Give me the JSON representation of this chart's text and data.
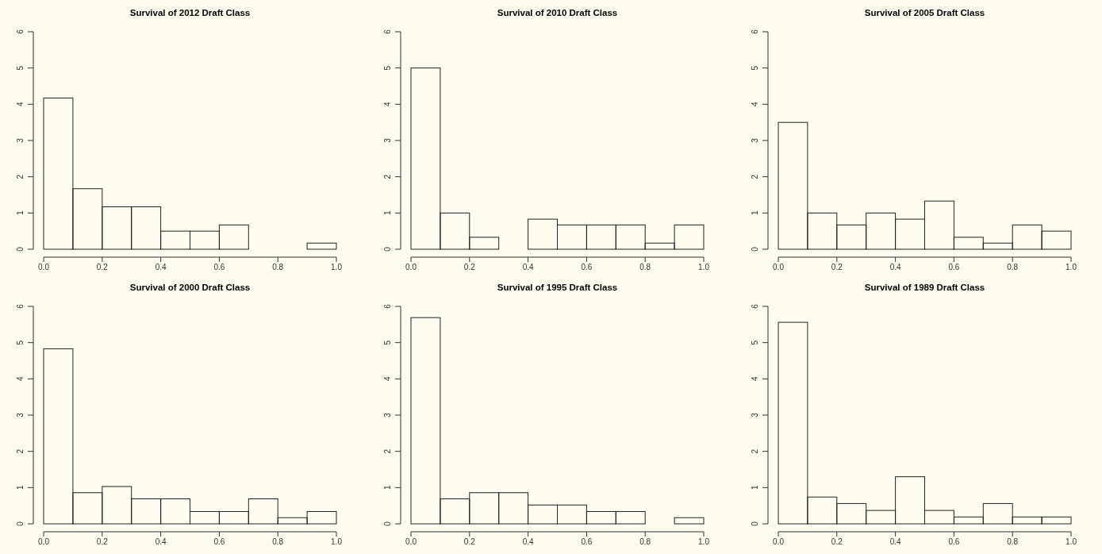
{
  "chart_data": [
    {
      "type": "histogram",
      "title": "Survival of 2012 Draft Class",
      "bins": [
        0,
        0.1,
        0.2,
        0.3,
        0.4,
        0.5,
        0.6,
        0.7,
        0.8,
        0.9,
        1.0
      ],
      "values": [
        4.17,
        1.67,
        1.17,
        1.17,
        0.5,
        0.5,
        0.67,
        0,
        0,
        0.17
      ],
      "xlim": [
        0,
        1
      ],
      "xticks": [
        {
          "value": 0,
          "label": "0.0"
        },
        {
          "value": 0.2,
          "label": "0.2"
        },
        {
          "value": 0.4,
          "label": "0.4"
        },
        {
          "value": 0.6,
          "label": "0.6"
        },
        {
          "value": 0.8,
          "label": "0.8"
        },
        {
          "value": 1,
          "label": "1.0"
        }
      ],
      "ylim": [
        0,
        6
      ],
      "yticks": [
        0,
        1,
        2,
        3,
        4,
        5,
        6
      ]
    },
    {
      "type": "histogram",
      "title": "Survival of 2010 Draft Class",
      "bins": [
        0,
        0.1,
        0.2,
        0.3,
        0.4,
        0.5,
        0.6,
        0.7,
        0.8,
        0.9,
        1.0
      ],
      "values": [
        5,
        1,
        0.33,
        0,
        0.83,
        0.67,
        0.67,
        0.67,
        0.17,
        0.67
      ],
      "xlim": [
        0,
        1
      ],
      "xticks": [
        {
          "value": 0,
          "label": "0.0"
        },
        {
          "value": 0.2,
          "label": "0.2"
        },
        {
          "value": 0.4,
          "label": "0.4"
        },
        {
          "value": 0.6,
          "label": "0.6"
        },
        {
          "value": 0.8,
          "label": "0.8"
        },
        {
          "value": 1,
          "label": "1.0"
        }
      ],
      "ylim": [
        0,
        6
      ],
      "yticks": [
        0,
        1,
        2,
        3,
        4,
        5,
        6
      ]
    },
    {
      "type": "histogram",
      "title": "Survival of 2005 Draft Class",
      "bins": [
        0,
        0.1,
        0.2,
        0.3,
        0.4,
        0.5,
        0.6,
        0.7,
        0.8,
        0.9,
        1.0
      ],
      "values": [
        3.5,
        1,
        0.67,
        1,
        0.83,
        1.33,
        0.33,
        0.17,
        0.67,
        0.5
      ],
      "xlim": [
        0,
        1
      ],
      "xticks": [
        {
          "value": 0,
          "label": "0.0"
        },
        {
          "value": 0.2,
          "label": "0.2"
        },
        {
          "value": 0.4,
          "label": "0.4"
        },
        {
          "value": 0.6,
          "label": "0.6"
        },
        {
          "value": 0.8,
          "label": "0.8"
        },
        {
          "value": 1,
          "label": "1.0"
        }
      ],
      "ylim": [
        0,
        6
      ],
      "yticks": [
        0,
        1,
        2,
        3,
        4,
        5,
        6
      ]
    },
    {
      "type": "histogram",
      "title": "Survival of 2000 Draft Class",
      "bins": [
        0,
        0.1,
        0.2,
        0.3,
        0.4,
        0.5,
        0.6,
        0.7,
        0.8,
        0.9,
        1.0
      ],
      "values": [
        4.83,
        0.86,
        1.03,
        0.69,
        0.69,
        0.34,
        0.34,
        0.69,
        0.17,
        0.34
      ],
      "xlim": [
        0,
        1
      ],
      "xticks": [
        {
          "value": 0,
          "label": "0.0"
        },
        {
          "value": 0.2,
          "label": "0.2"
        },
        {
          "value": 0.4,
          "label": "0.4"
        },
        {
          "value": 0.6,
          "label": "0.6"
        },
        {
          "value": 0.8,
          "label": "0.8"
        },
        {
          "value": 1,
          "label": "1.0"
        }
      ],
      "ylim": [
        0,
        6
      ],
      "yticks": [
        0,
        1,
        2,
        3,
        4,
        5,
        6
      ]
    },
    {
      "type": "histogram",
      "title": "Survival of 1995 Draft Class",
      "bins": [
        0,
        0.1,
        0.2,
        0.3,
        0.4,
        0.5,
        0.6,
        0.7,
        0.8,
        0.9,
        1.0
      ],
      "values": [
        5.69,
        0.69,
        0.86,
        0.86,
        0.52,
        0.52,
        0.34,
        0.34,
        0,
        0.17
      ],
      "xlim": [
        0,
        1
      ],
      "xticks": [
        {
          "value": 0,
          "label": "0.0"
        },
        {
          "value": 0.2,
          "label": "0.2"
        },
        {
          "value": 0.4,
          "label": "0.4"
        },
        {
          "value": 0.6,
          "label": "0.6"
        },
        {
          "value": 0.8,
          "label": "0.8"
        },
        {
          "value": 1,
          "label": "1.0"
        }
      ],
      "ylim": [
        0,
        6
      ],
      "yticks": [
        0,
        1,
        2,
        3,
        4,
        5,
        6
      ]
    },
    {
      "type": "histogram",
      "title": "Survival of 1989 Draft Class",
      "bins": [
        0,
        0.1,
        0.2,
        0.3,
        0.4,
        0.5,
        0.6,
        0.7,
        0.8,
        0.9,
        1.0
      ],
      "values": [
        5.56,
        0.74,
        0.56,
        0.37,
        1.3,
        0.37,
        0.19,
        0.56,
        0.19,
        0.19
      ],
      "xlim": [
        0,
        1
      ],
      "xticks": [
        {
          "value": 0,
          "label": "0.0"
        },
        {
          "value": 0.2,
          "label": "0.2"
        },
        {
          "value": 0.4,
          "label": "0.4"
        },
        {
          "value": 0.6,
          "label": "0.6"
        },
        {
          "value": 0.8,
          "label": "0.8"
        },
        {
          "value": 1,
          "label": "1.0"
        }
      ],
      "ylim": [
        0,
        6
      ],
      "yticks": [
        0,
        1,
        2,
        3,
        4,
        5,
        6
      ]
    }
  ]
}
